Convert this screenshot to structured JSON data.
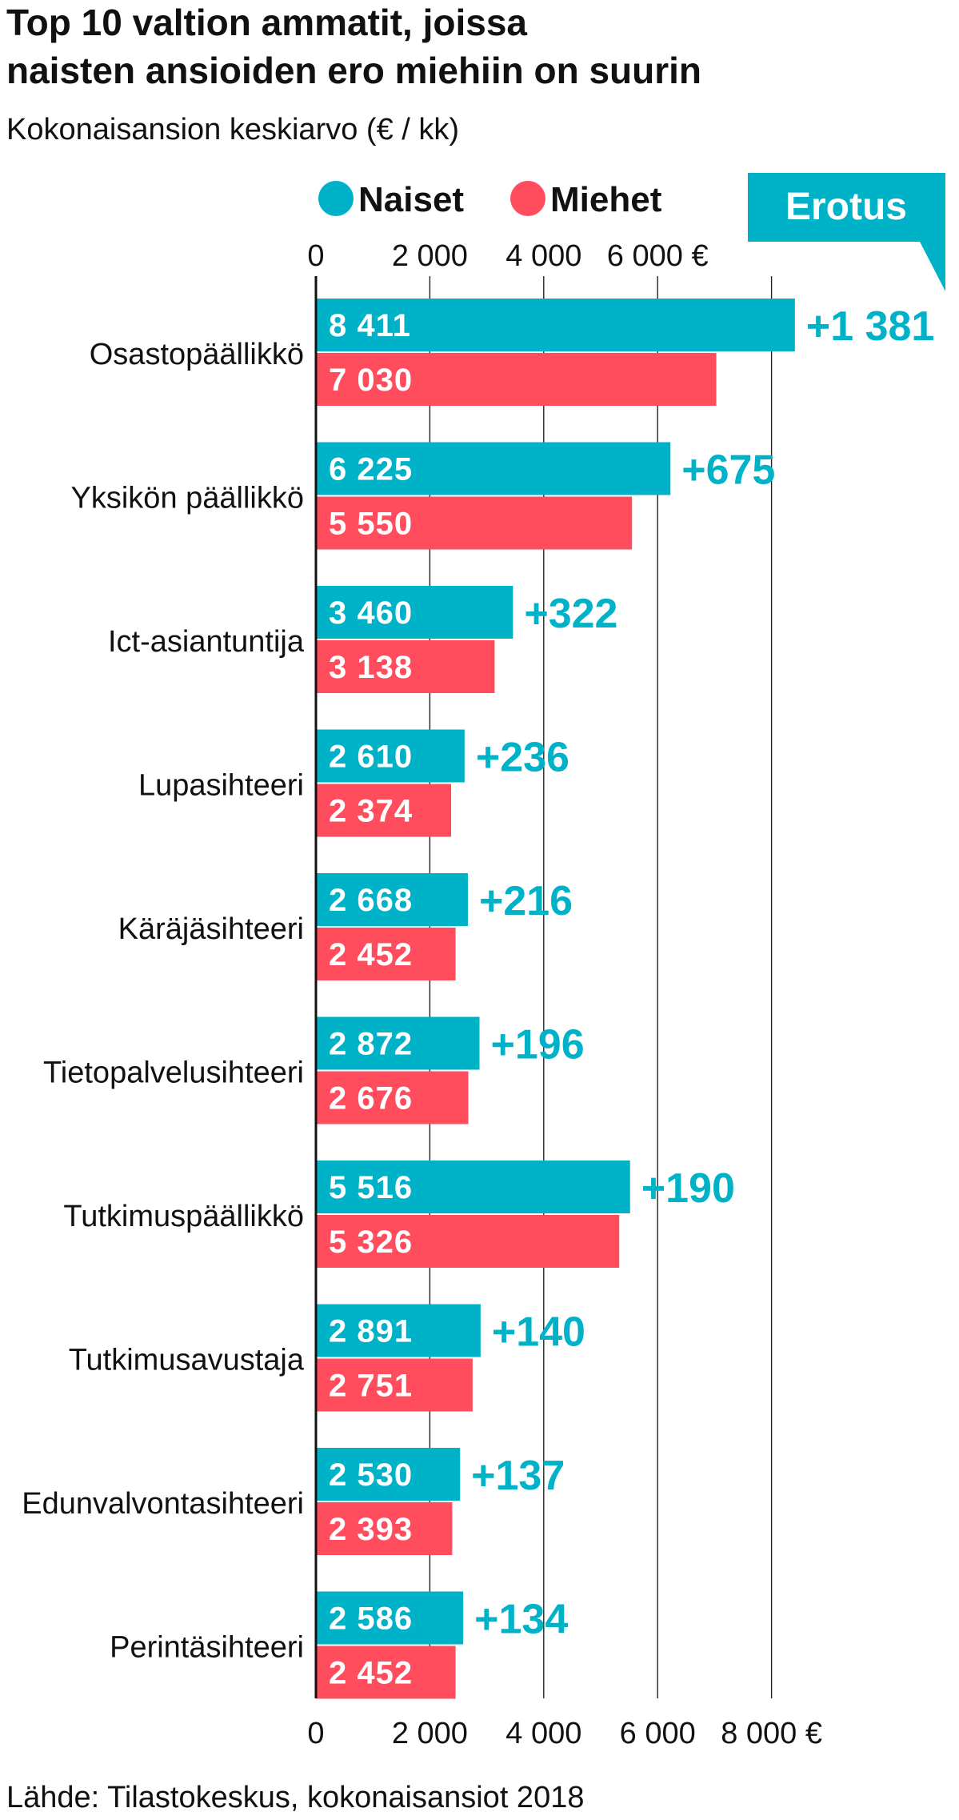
{
  "title_line1": "Top 10 valtion ammatit, joissa",
  "title_line2": "naisten ansioiden ero miehiin on suurin",
  "subtitle": "Kokonaisansion keskiarvo (€ / kk)",
  "legend": {
    "naiset": "Naiset",
    "miehet": "Miehet",
    "erotus": "Erotus"
  },
  "colors": {
    "naiset": "#00b2c8",
    "miehet": "#ff4d5e",
    "text": "#111111",
    "grid": "#222222"
  },
  "source": "Lähde: Tilastokeskus, kokonaisansiot 2018",
  "chart_data": {
    "type": "bar",
    "orientation": "horizontal",
    "title": "Top 10 valtion ammatit, joissa naisten ansioiden ero miehiin on suurin",
    "subtitle": "Kokonaisansion keskiarvo (€ / kk)",
    "xlim": [
      0,
      8000
    ],
    "top_ticks": [
      "0",
      "2 000",
      "4 000",
      "6 000 €"
    ],
    "bottom_ticks": [
      "0",
      "2 000",
      "4 000",
      "6 000",
      "8 000 €"
    ],
    "tick_values": [
      0,
      2000,
      4000,
      6000,
      8000
    ],
    "grid": true,
    "categories": [
      "Osastopäällikkö",
      "Yksikön päällikkö",
      "Ict-asiantuntija",
      "Lupasihteeri",
      "Käräjäsihteeri",
      "Tietopalvelusihteeri",
      "Tutkimuspäällikkö",
      "Tutkimusavustaja",
      "Edunvalvontasihteeri",
      "Perintäsihteeri"
    ],
    "series": [
      {
        "name": "Naiset",
        "values": [
          8411,
          6225,
          3460,
          2610,
          2668,
          2872,
          5516,
          2891,
          2530,
          2586
        ],
        "labels": [
          "8 411",
          "6 225",
          "3 460",
          "2 610",
          "2 668",
          "2 872",
          "5 516",
          "2 891",
          "2 530",
          "2 586"
        ]
      },
      {
        "name": "Miehet",
        "values": [
          7030,
          5550,
          3138,
          2374,
          2452,
          2676,
          5326,
          2751,
          2393,
          2452
        ],
        "labels": [
          "7 030",
          "5 550",
          "3 138",
          "2 374",
          "2 452",
          "2 676",
          "5 326",
          "2 751",
          "2 393",
          "2 452"
        ]
      }
    ],
    "difference_labels": [
      "+1 381",
      "+675",
      "+322",
      "+236",
      "+216",
      "+196",
      "+190",
      "+140",
      "+137",
      "+134"
    ]
  }
}
